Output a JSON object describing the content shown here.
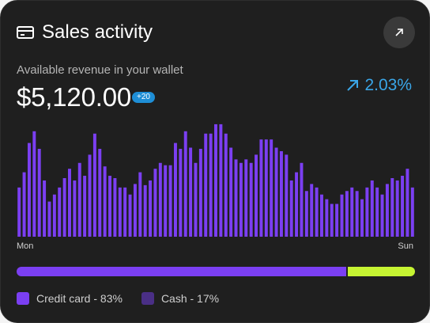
{
  "header": {
    "title": "Sales activity",
    "icon": "credit-card-icon",
    "expand_icon": "arrow-up-right-icon"
  },
  "summary": {
    "subtitle": "Available revenue in your wallet",
    "amount": "$5,120.00",
    "badge": "+20",
    "change": "2.03%",
    "change_icon": "trend-up-arrow-icon",
    "change_color": "#3aa6e8"
  },
  "chart_data": {
    "type": "bar",
    "x_start_label": "Mon",
    "x_end_label": "Sun",
    "bar_color": "#7b3ff2",
    "ylim": [
      0,
      100
    ],
    "values": [
      42,
      55,
      80,
      90,
      75,
      48,
      30,
      36,
      42,
      50,
      58,
      48,
      63,
      52,
      70,
      88,
      75,
      60,
      52,
      50,
      42,
      42,
      36,
      45,
      55,
      44,
      48,
      58,
      63,
      61,
      61,
      80,
      75,
      90,
      76,
      63,
      75,
      88,
      88,
      96,
      96,
      88,
      76,
      66,
      63,
      66,
      63,
      70,
      83,
      83,
      83,
      76,
      73,
      70,
      48,
      55,
      63,
      39,
      45,
      42,
      36,
      32,
      28,
      28,
      36,
      39,
      42,
      39,
      32,
      42,
      48,
      42,
      36,
      45,
      50,
      48,
      52,
      58,
      42
    ],
    "series": [
      {
        "values_ref": "values"
      }
    ]
  },
  "x_axis": {
    "start": "Mon",
    "end": "Sun"
  },
  "breakdown": {
    "credit_fraction": 0.83,
    "credit_color": "#7b3ff2",
    "cash_color": "#c6f432",
    "legend_credit": "Credit card - 83%",
    "legend_cash": "Cash - 17%",
    "legend_credit_color": "#7b3ff2",
    "legend_cash_color": "#4a2f86"
  }
}
